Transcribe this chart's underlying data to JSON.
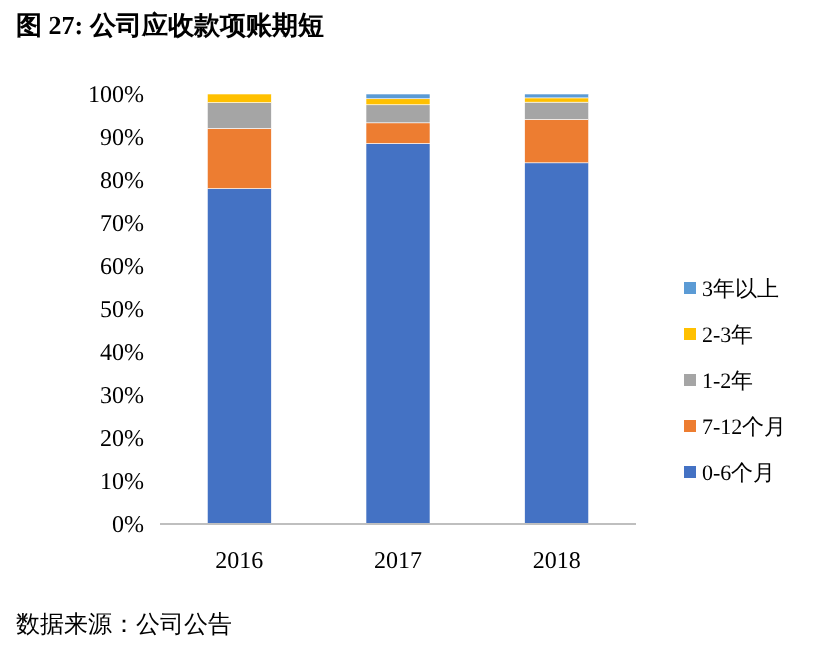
{
  "chart_data": {
    "type": "bar",
    "title": "图 27: 公司应收款项账期短",
    "categories": [
      "2016",
      "2017",
      "2018"
    ],
    "stacked": true,
    "series": [
      {
        "name": "0-6个月",
        "color": "#4472c4",
        "values": [
          78,
          88.5,
          84
        ]
      },
      {
        "name": "7-12个月",
        "color": "#ed7d31",
        "values": [
          14,
          4.8,
          10.1
        ]
      },
      {
        "name": "1-2年",
        "color": "#a5a5a5",
        "values": [
          6,
          4.2,
          4
        ]
      },
      {
        "name": "2-3年",
        "color": "#ffc000",
        "values": [
          2,
          1.4,
          1
        ]
      },
      {
        "name": "3年以上",
        "color": "#5b9bd5",
        "values": [
          0,
          1.1,
          0.9
        ]
      }
    ],
    "ylim": [
      0,
      100
    ],
    "yticks": [
      {
        "value": 0,
        "label": "0%"
      },
      {
        "value": 10,
        "label": "10%"
      },
      {
        "value": 20,
        "label": "20%"
      },
      {
        "value": 30,
        "label": "30%"
      },
      {
        "value": 40,
        "label": "40%"
      },
      {
        "value": 50,
        "label": "50%"
      },
      {
        "value": 60,
        "label": "60%"
      },
      {
        "value": 70,
        "label": "70%"
      },
      {
        "value": 80,
        "label": "80%"
      },
      {
        "value": 90,
        "label": "90%"
      },
      {
        "value": 100,
        "label": "100%"
      }
    ],
    "legend": "right",
    "annotations": [
      "数据来源：公司公告"
    ]
  }
}
